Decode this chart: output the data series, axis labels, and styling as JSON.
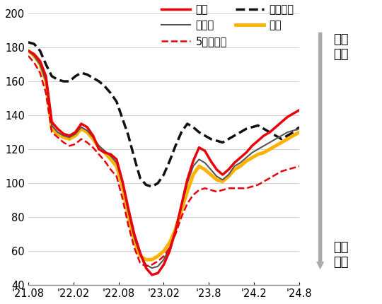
{
  "ylim": [
    40,
    205
  ],
  "yticks": [
    40,
    60,
    80,
    100,
    120,
    140,
    160,
    180,
    200
  ],
  "xtick_labels": [
    "'21.08",
    "'22.02",
    "'22.08",
    "'23.02",
    "'23.8",
    "'24.2",
    "'24.8"
  ],
  "tick_positions": [
    0,
    7.67,
    15.33,
    23,
    30.67,
    38.33,
    46
  ],
  "series": {
    "서울": {
      "color": "#e8000b",
      "linestyle": "solid",
      "linewidth": 2.5,
      "data": [
        178,
        176,
        172,
        163,
        136,
        132,
        129,
        128,
        130,
        135,
        133,
        128,
        120,
        118,
        117,
        114,
        101,
        85,
        70,
        59,
        50,
        46,
        47,
        52,
        60,
        72,
        87,
        102,
        113,
        121,
        119,
        113,
        108,
        105,
        108,
        112,
        115,
        118,
        122,
        125,
        128,
        130,
        133,
        136,
        139,
        141,
        143
      ]
    },
    "수도권": {
      "color": "#555555",
      "linestyle": "solid",
      "linewidth": 1.5,
      "data": [
        178,
        175,
        170,
        160,
        134,
        130,
        128,
        127,
        129,
        133,
        131,
        127,
        122,
        119,
        116,
        112,
        100,
        83,
        68,
        58,
        52,
        50,
        51,
        55,
        62,
        72,
        86,
        100,
        110,
        114,
        112,
        108,
        104,
        102,
        105,
        110,
        112,
        115,
        118,
        120,
        122,
        124,
        126,
        128,
        130,
        131,
        132
      ]
    },
    "5개광역시": {
      "color": "#e8000b",
      "linestyle": "dashed",
      "linewidth": 1.8,
      "data": [
        175,
        171,
        165,
        153,
        130,
        127,
        124,
        122,
        123,
        126,
        124,
        121,
        117,
        113,
        108,
        104,
        91,
        75,
        62,
        53,
        51,
        52,
        54,
        57,
        62,
        70,
        80,
        88,
        93,
        96,
        97,
        96,
        95,
        96,
        97,
        97,
        97,
        97,
        98,
        99,
        101,
        103,
        105,
        107,
        108,
        109,
        110
      ]
    },
    "기타지방": {
      "color": "#111111",
      "linestyle": "dashed",
      "linewidth": 2.5,
      "data": [
        183,
        182,
        178,
        170,
        163,
        161,
        160,
        160,
        163,
        165,
        164,
        162,
        160,
        157,
        153,
        148,
        138,
        128,
        115,
        103,
        99,
        98,
        100,
        105,
        113,
        122,
        130,
        135,
        133,
        130,
        128,
        126,
        125,
        124,
        126,
        128,
        130,
        132,
        133,
        134,
        132,
        130,
        128,
        126,
        128,
        130,
        133
      ]
    },
    "전국": {
      "color": "#FFB300",
      "linestyle": "solid",
      "linewidth": 3.5,
      "data": [
        178,
        175,
        170,
        160,
        132,
        129,
        127,
        126,
        128,
        132,
        130,
        126,
        121,
        118,
        114,
        110,
        98,
        81,
        66,
        57,
        55,
        55,
        57,
        60,
        65,
        73,
        84,
        95,
        105,
        110,
        108,
        105,
        102,
        101,
        104,
        108,
        110,
        113,
        115,
        117,
        118,
        120,
        122,
        124,
        126,
        128,
        130
      ]
    }
  },
  "n_points": 47,
  "series_order": [
    "기타지방",
    "전국",
    "수도권",
    "서울",
    "5개광역시"
  ],
  "arrow_color": "#aaaaaa",
  "background_color": "#ffffff"
}
